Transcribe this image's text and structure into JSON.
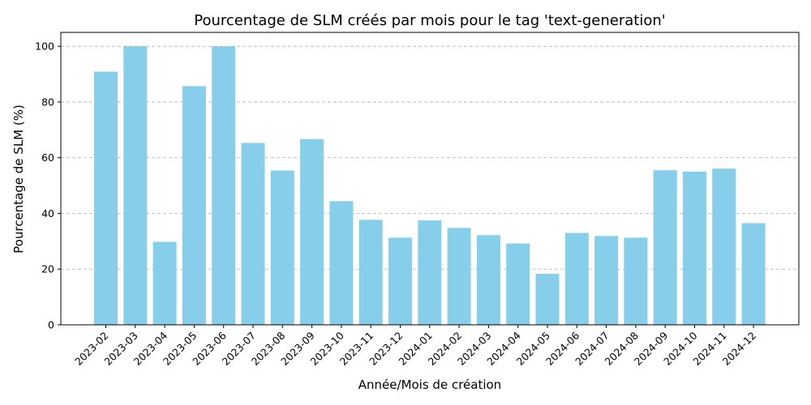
{
  "chart_data": {
    "type": "bar",
    "title": "Pourcentage de SLM créés par mois pour le tag 'text-generation'",
    "xlabel": "Année/Mois de création",
    "ylabel": "Pourcentage de SLM (%)",
    "ylim": [
      0,
      105
    ],
    "yticks": [
      0,
      20,
      40,
      60,
      80,
      100
    ],
    "grid": "y-dashed",
    "bar_color": "#87CEEB",
    "categories": [
      "2023-02",
      "2023-03",
      "2023-04",
      "2023-05",
      "2023-06",
      "2023-07",
      "2023-08",
      "2023-09",
      "2023-10",
      "2023-11",
      "2023-12",
      "2024-01",
      "2024-02",
      "2024-03",
      "2024-04",
      "2024-05",
      "2024-06",
      "2024-07",
      "2024-08",
      "2024-09",
      "2024-10",
      "2024-11",
      "2024-12"
    ],
    "values": [
      90.9,
      100,
      29.8,
      85.7,
      100,
      65.3,
      55.4,
      66.7,
      44.4,
      37.7,
      31.3,
      37.5,
      34.8,
      32.2,
      29.2,
      18.3,
      33.0,
      31.9,
      31.3,
      55.5,
      55.0,
      56.1,
      36.5
    ]
  }
}
